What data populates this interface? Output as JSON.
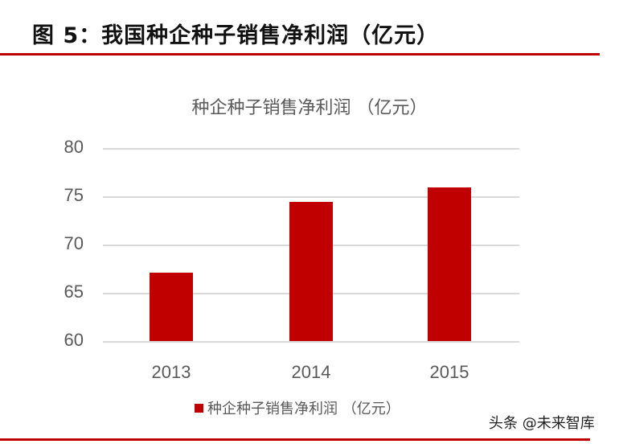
{
  "figure": {
    "title": "图 5：我国种企种子销售净利润（亿元）",
    "watermark": "头条 @未来智库",
    "accent_color": "#c00000"
  },
  "chart_data": {
    "type": "bar",
    "title": "种企种子销售净利润 （亿元）",
    "categories": [
      "2013",
      "2014",
      "2015"
    ],
    "series": [
      {
        "name": "种企种子销售净利润 （亿元）",
        "values": [
          67.1,
          74.4,
          75.9
        ],
        "color": "#c00000"
      }
    ],
    "xlabel": "",
    "ylabel": "",
    "ylim": [
      60,
      80
    ],
    "yticks": [
      "80",
      "75",
      "70",
      "65",
      "60"
    ],
    "grid": true,
    "legend_position": "bottom"
  }
}
